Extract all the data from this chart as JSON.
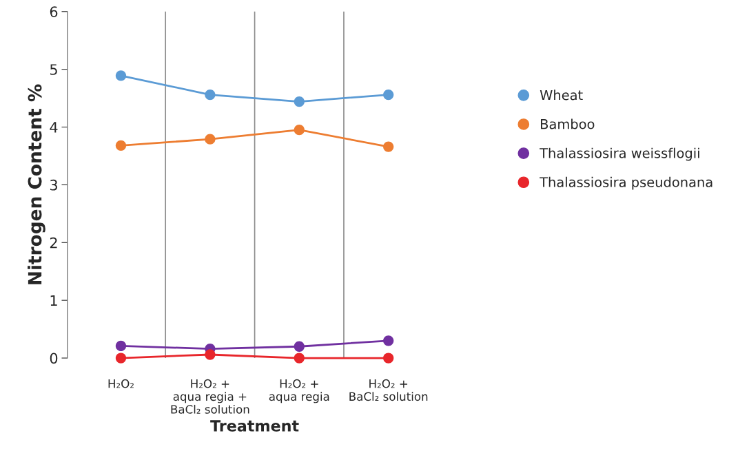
{
  "chart_data": {
    "type": "line",
    "xlabel": "Treatment",
    "ylabel": "Nitrogen Content %",
    "categories": [
      "H₂O₂",
      "H₂O₂ +\naqua regia +\nBaCl₂ solution",
      "H₂O₂ +\naqua regia",
      "H₂O₂ +\nBaCl₂ solution"
    ],
    "series": [
      {
        "name": "Wheat",
        "color": "#5b9bd5",
        "values": [
          4.89,
          4.56,
          4.44,
          4.56
        ]
      },
      {
        "name": "Bamboo",
        "color": "#ed7d31",
        "values": [
          3.68,
          3.79,
          3.95,
          3.66
        ]
      },
      {
        "name": "Thalassiosira weissflogii",
        "color": "#7030a0",
        "values": [
          0.21,
          0.16,
          0.2,
          0.3
        ]
      },
      {
        "name": "Thalassiosira pseudonana",
        "color": "#e8262b",
        "values": [
          0,
          0.06,
          0,
          0
        ]
      }
    ],
    "ylim": [
      0,
      6
    ],
    "yticks": [
      0,
      1,
      2,
      3,
      4,
      5,
      6
    ],
    "grid": "x",
    "legend": "right",
    "marker": "circle",
    "line_style": "solid"
  }
}
